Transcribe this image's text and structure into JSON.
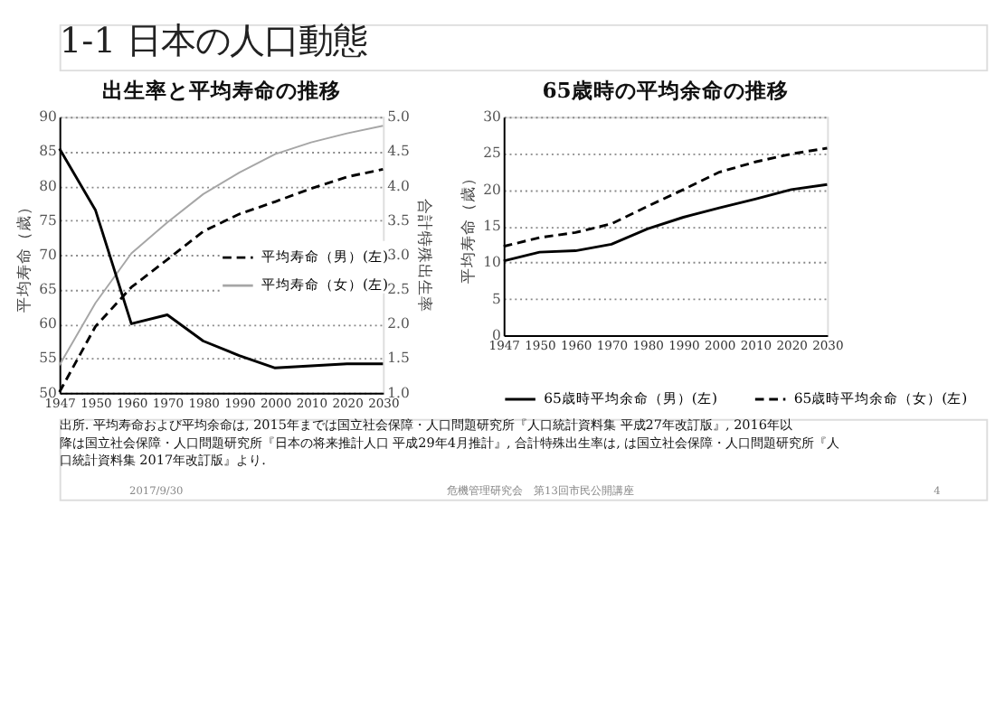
{
  "chart_data": [
    {
      "type": "line",
      "title": "出生率と平均寿命の推移",
      "ylabel": "平均寿命（歳）",
      "y2label": "合計特殊出生率",
      "categories": [
        "1947",
        "1950",
        "1960",
        "1970",
        "1980",
        "1990",
        "2000",
        "2010",
        "2020",
        "2030"
      ],
      "series": [
        {
          "name": "平均寿命（男）(左)",
          "color": "#000000",
          "line_style": "dashed",
          "values": [
            50.1,
            59.6,
            65.3,
            69.3,
            73.4,
            75.9,
            77.7,
            79.6,
            81.3,
            82.4
          ]
        },
        {
          "name": "平均寿命（女）(左)",
          "color": "#a6a6a6",
          "line_style": "solid",
          "values": [
            54.0,
            63.0,
            70.2,
            74.7,
            78.8,
            81.9,
            84.6,
            86.3,
            87.6,
            88.7
          ]
        },
        {
          "color": "#000000",
          "line_style": "solid",
          "axis": "y2",
          "values": [
            4.54,
            3.65,
            2.0,
            2.13,
            1.75,
            1.54,
            1.36,
            1.39,
            1.42,
            1.42
          ]
        }
      ],
      "ylim": [
        50,
        90
      ],
      "yticks": [
        50,
        55,
        60,
        65,
        70,
        75,
        80,
        85,
        90
      ],
      "y2lim": [
        1.0,
        5.0
      ],
      "y2ticks": [
        {
          "value": 1,
          "label": "1.0"
        },
        1.5,
        {
          "value": 2,
          "label": "2.0"
        },
        2.5,
        {
          "value": 3,
          "label": "3.0"
        },
        3.5,
        {
          "value": 4,
          "label": "4.0"
        },
        4.5,
        {
          "value": 5,
          "label": "5.0"
        }
      ],
      "grid": "y",
      "legend": "right",
      "annotations": [
        "1-1 日本の人口動態",
        "出所. 平均寿命および平均余命は, 2015年までは国立社会保障・人口問題研究所『人口統計資料集 平成27年改訂版』, 2016年以降は国立社会保障・人口問題研究所『日本の将来推計人口 平成29年4月推計』, 合計特殊出生率は, は国立社会保障・人口問題研究所『人口統計資料集 2017年改訂版』より.",
        "2017/9/30",
        "危機管理研究会　第13回市民公開講座",
        "4"
      ]
    },
    {
      "type": "line",
      "title": "65歳時の平均余命の推移",
      "ylabel": "平均寿命（歳）",
      "categories": [
        "1947",
        "1950",
        "1960",
        "1970",
        "1980",
        "1990",
        "2000",
        "2010",
        "2020",
        "2030"
      ],
      "series": [
        {
          "name": "65歳時平均余命（男）(左)",
          "color": "#000000",
          "line_style": "solid",
          "values": [
            10.2,
            11.4,
            11.6,
            12.5,
            14.6,
            16.2,
            17.5,
            18.7,
            20.0,
            20.7
          ]
        },
        {
          "name": "65歳時平均余命（女）(左)",
          "color": "#000000",
          "line_style": "dashed",
          "values": [
            12.2,
            13.4,
            14.1,
            15.3,
            17.7,
            20.0,
            22.4,
            23.8,
            24.9,
            25.7
          ]
        }
      ],
      "ylim": [
        0,
        30
      ],
      "yticks": [
        0,
        5,
        10,
        15,
        20,
        25,
        30
      ],
      "grid": "y",
      "legend": "bottom"
    }
  ]
}
